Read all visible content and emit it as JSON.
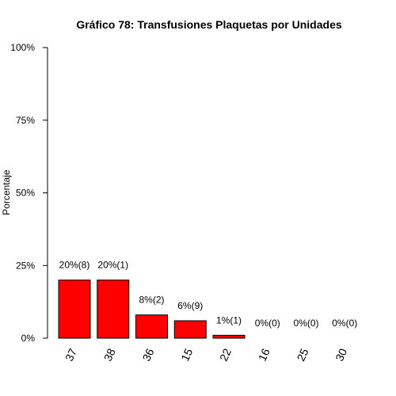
{
  "chart_data": {
    "type": "bar",
    "title": "Gráfico 78: Transfusiones Plaquetas por Unidades",
    "xlabel": "",
    "ylabel": "Porcentaje",
    "ylim": [
      0,
      100
    ],
    "y_ticks": [
      0,
      25,
      50,
      75,
      100
    ],
    "y_tick_labels": [
      "0%",
      "25%",
      "50%",
      "75%",
      "100%"
    ],
    "categories": [
      "37",
      "38",
      "36",
      "15",
      "22",
      "16",
      "25",
      "30"
    ],
    "values": [
      20,
      20,
      8,
      6,
      1,
      0,
      0,
      0
    ],
    "bar_labels": [
      "20%(8)",
      "20%(1)",
      "8%(2)",
      "6%(9)",
      "1%(1)",
      "0%(0)",
      "0%(0)",
      "0%(0)"
    ],
    "bar_color": "#ff0000",
    "grid": false,
    "legend": "none"
  }
}
